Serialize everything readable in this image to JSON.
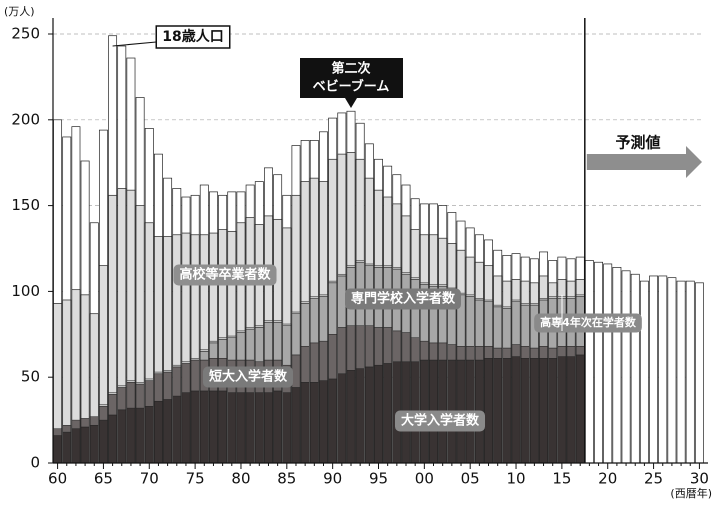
{
  "chart_data": {
    "type": "bar",
    "y_unit": "(万人)",
    "x_unit": "(西暦年)",
    "categories": [
      "60",
      null,
      null,
      null,
      null,
      "65",
      null,
      null,
      null,
      null,
      "70",
      null,
      null,
      null,
      null,
      "75",
      null,
      null,
      null,
      null,
      "80",
      null,
      null,
      null,
      null,
      "85",
      null,
      null,
      null,
      null,
      "90",
      null,
      null,
      null,
      null,
      "95",
      null,
      null,
      null,
      null,
      "00",
      null,
      null,
      null,
      null,
      "05",
      null,
      null,
      null,
      null,
      "10",
      null,
      null,
      null,
      null,
      "15",
      null,
      null,
      null,
      null,
      "20",
      null,
      null,
      null,
      null,
      "25",
      null,
      null,
      null,
      null,
      "30"
    ],
    "ylim": [
      0,
      250
    ],
    "yticks": [
      0,
      50,
      100,
      150,
      200,
      250
    ],
    "grid": true,
    "series": [
      {
        "name": "18歳人口",
        "color": "#ffffff",
        "stacked": false,
        "values": [
          200,
          190,
          196,
          176,
          140,
          194,
          249,
          243,
          236,
          213,
          195,
          180,
          166,
          160,
          155,
          156,
          162,
          158,
          156,
          158,
          158,
          162,
          164,
          172,
          168,
          156,
          185,
          188,
          188,
          193,
          201,
          204,
          205,
          198,
          186,
          177,
          173,
          168,
          162,
          154,
          151,
          151,
          150,
          146,
          141,
          137,
          133,
          130,
          124,
          121,
          122,
          120,
          119,
          123,
          118,
          120,
          119,
          120,
          118,
          117,
          116,
          114,
          112,
          110,
          106,
          109,
          109,
          108,
          106,
          106,
          105
        ]
      },
      {
        "name": "高校等卒業者数",
        "color": "#dcdcdc",
        "stacked": false,
        "values": [
          93,
          95,
          101,
          98,
          87,
          115,
          156,
          160,
          159,
          150,
          140,
          132,
          132,
          133,
          134,
          133,
          133,
          134,
          136,
          135,
          140,
          143,
          139,
          144,
          142,
          137,
          156,
          164,
          166,
          164,
          177,
          180,
          181,
          177,
          166,
          159,
          155,
          151,
          144,
          136,
          133,
          133,
          131,
          128,
          124,
          120,
          117,
          115,
          109,
          106,
          107,
          106,
          105,
          109,
          105,
          107,
          106,
          107,
          null,
          null,
          null,
          null,
          null,
          null,
          null,
          null,
          null,
          null,
          null,
          null,
          null
        ]
      },
      {
        "name": "大学入学者数",
        "color": "#393333",
        "stacked": true,
        "values": [
          16,
          18,
          20,
          21,
          22,
          25,
          28,
          31,
          32,
          32,
          33,
          36,
          37,
          39,
          41,
          42,
          42,
          42,
          42,
          41,
          41,
          41,
          41,
          41,
          42,
          41,
          44,
          47,
          47,
          48,
          49,
          52,
          54,
          55,
          56,
          57,
          58,
          59,
          59,
          59,
          60,
          60,
          60,
          60,
          60,
          60,
          60,
          61,
          61,
          61,
          62,
          61,
          61,
          61,
          61,
          62,
          62,
          63,
          null,
          null,
          null,
          null,
          null,
          null,
          null,
          null,
          null,
          null,
          null,
          null,
          null
        ]
      },
      {
        "name": "短大入学者数",
        "color": "#6b6565",
        "stacked": true,
        "values": [
          4,
          4,
          5,
          5,
          5,
          8,
          12,
          13,
          15,
          14,
          15,
          16,
          16,
          17,
          17,
          18,
          18,
          19,
          19,
          19,
          19,
          19,
          18,
          19,
          18,
          16,
          19,
          21,
          23,
          23,
          26,
          27,
          26,
          25,
          24,
          22,
          21,
          18,
          17,
          14,
          11,
          10,
          10,
          9,
          8,
          8,
          8,
          7,
          6,
          6,
          7,
          7,
          6,
          7,
          6,
          6,
          6,
          5,
          null,
          null,
          null,
          null,
          null,
          null,
          null,
          null,
          null,
          null,
          null,
          null,
          null
        ]
      },
      {
        "name": "専門学校入学者数",
        "color": "#a8a8a8",
        "stacked": true,
        "values": [
          null,
          null,
          null,
          null,
          null,
          null,
          null,
          null,
          null,
          null,
          null,
          null,
          null,
          null,
          null,
          null,
          5,
          9,
          11,
          13,
          16,
          18,
          20,
          22,
          22,
          23,
          24,
          25,
          26,
          26,
          30,
          30,
          34,
          37,
          35,
          35,
          35,
          36,
          34,
          34,
          33,
          33,
          33,
          32,
          30,
          29,
          27,
          26,
          24,
          23,
          25,
          24,
          25,
          27,
          29,
          28,
          28,
          29,
          null,
          null,
          null,
          null,
          null,
          null,
          null,
          null,
          null,
          null,
          null,
          null,
          null
        ]
      },
      {
        "name": "高専4年次在学者数",
        "color": "#c4c4c4",
        "stacked": true,
        "values": [
          null,
          null,
          null,
          null,
          null,
          1,
          1,
          1,
          1,
          1,
          1,
          1,
          1,
          1,
          1,
          1,
          1,
          1,
          1,
          1,
          1,
          1,
          1,
          1,
          1,
          1,
          1,
          1,
          1,
          1,
          1,
          1,
          1,
          1,
          1,
          1,
          1,
          1,
          1,
          1,
          1,
          1,
          1,
          1,
          1,
          1,
          1,
          1,
          1,
          1,
          1,
          1,
          1,
          1,
          1,
          1,
          1,
          1,
          null,
          null,
          null,
          null,
          null,
          null,
          null,
          null,
          null,
          null,
          null,
          null,
          null
        ]
      }
    ],
    "annotations": {
      "baby_boom": [
        "第二次",
        "ベビーブーム"
      ],
      "forecast": "予測値"
    }
  }
}
